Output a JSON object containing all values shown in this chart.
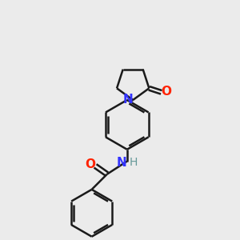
{
  "bg_color": "#ebebeb",
  "bond_color": "#1a1a1a",
  "N_color": "#3333ff",
  "O_color": "#ff2200",
  "H_color": "#669999",
  "bond_width": 1.8,
  "font_size": 11,
  "fig_size": [
    3.0,
    3.0
  ],
  "dpi": 100,
  "xlim": [
    0,
    10
  ],
  "ylim": [
    0,
    10
  ]
}
